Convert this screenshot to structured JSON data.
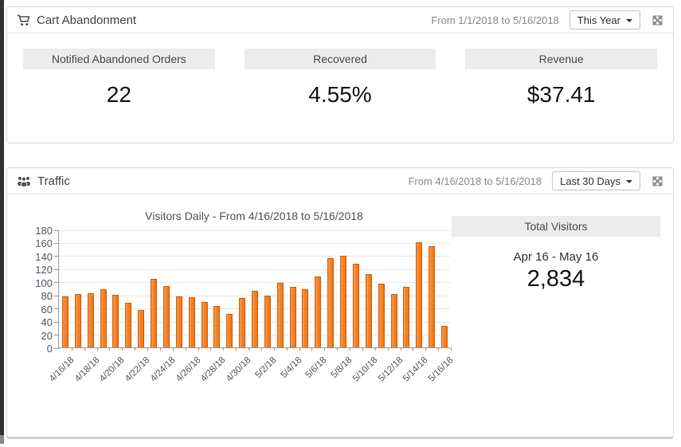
{
  "cart_panel": {
    "title": "Cart Abandonment",
    "date_range": "From 1/1/2018 to 5/16/2018",
    "range_dropdown": "This Year",
    "stats": [
      {
        "label": "Notified Abandoned Orders",
        "value": "22"
      },
      {
        "label": "Recovered",
        "value": "4.55%"
      },
      {
        "label": "Revenue",
        "value": "$37.41"
      }
    ]
  },
  "traffic_panel": {
    "title": "Traffic",
    "date_range": "From 4/16/2018 to 5/16/2018",
    "range_dropdown": "Last 30 Days",
    "total_visitors": {
      "label": "Total Visitors",
      "period": "Apr 16 - May 16",
      "value": "2,834"
    }
  },
  "chart_data": {
    "type": "bar",
    "title": "Visitors Daily - From 4/16/2018 to 5/16/2018",
    "categories": [
      "4/16/18",
      "4/17/18",
      "4/18/18",
      "4/19/18",
      "4/20/18",
      "4/21/18",
      "4/22/18",
      "4/23/18",
      "4/24/18",
      "4/25/18",
      "4/26/18",
      "4/27/18",
      "4/28/18",
      "4/29/18",
      "4/30/18",
      "5/1/18",
      "5/2/18",
      "5/3/18",
      "5/4/18",
      "5/5/18",
      "5/6/18",
      "5/7/18",
      "5/8/18",
      "5/9/18",
      "5/10/18",
      "5/11/18",
      "5/12/18",
      "5/13/18",
      "5/14/18",
      "5/15/18",
      "5/16/18"
    ],
    "values": [
      78,
      81,
      83,
      89,
      80,
      68,
      57,
      104,
      94,
      78,
      77,
      69,
      63,
      51,
      75,
      86,
      79,
      98,
      93,
      89,
      108,
      136,
      140,
      128,
      112,
      97,
      81,
      92,
      161,
      154,
      33
    ],
    "total": 2834,
    "xlabel": "",
    "ylabel": "",
    "ylim": [
      0,
      180
    ],
    "y_tick_step": 20,
    "x_label_every": 2,
    "grid": true,
    "legend_position": "none",
    "bar_color": "#f5822a",
    "bar_border_color": "#cd6109"
  },
  "icons": {
    "cart_panel": "shopping-cart",
    "traffic_panel": "users-group",
    "expand": "arrows-expand",
    "dropdown": "caret-down"
  }
}
